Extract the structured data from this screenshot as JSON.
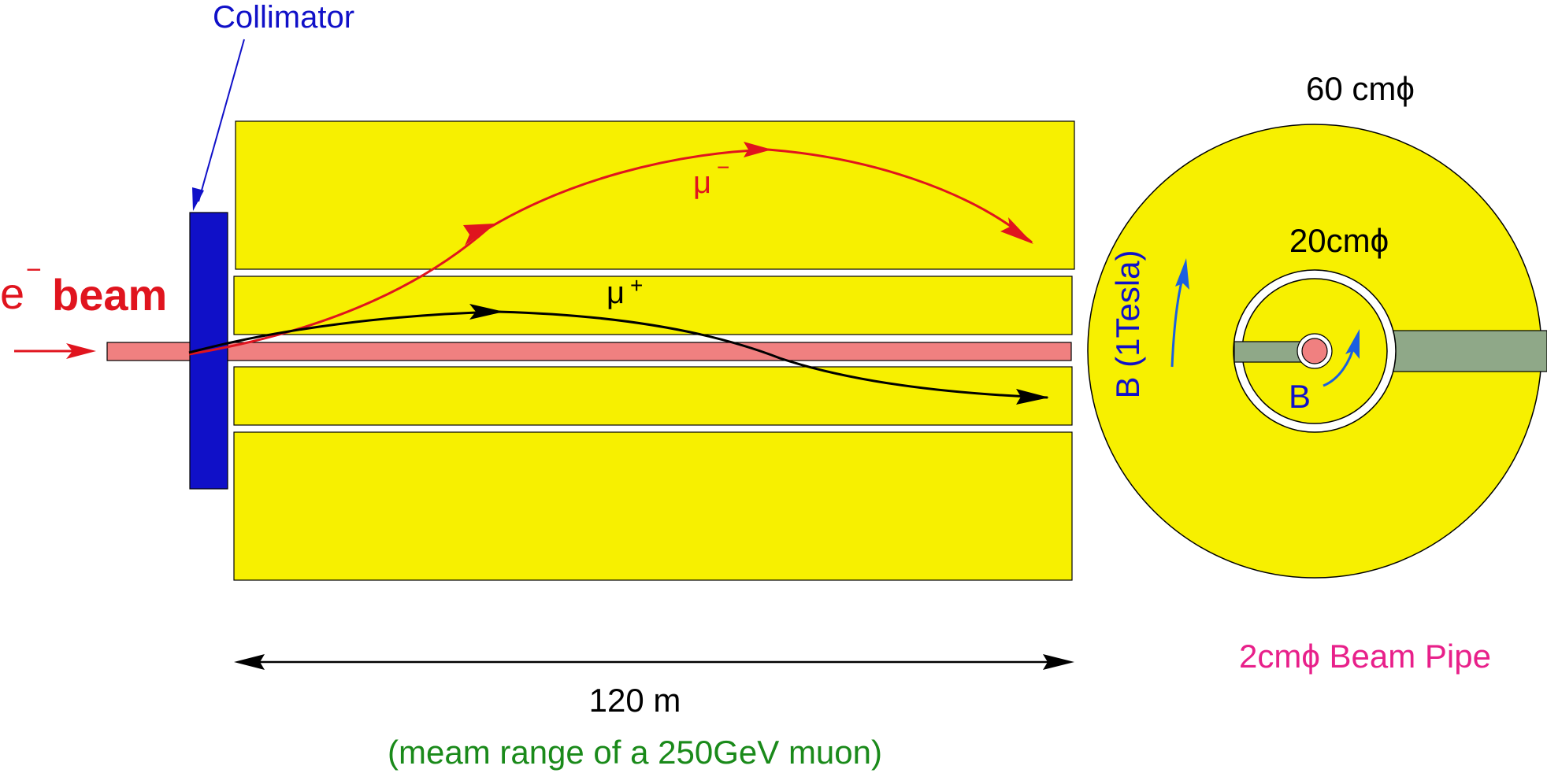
{
  "labels": {
    "collimator": "Collimator",
    "beam_particle": "e",
    "beam_charge": "−",
    "beam_word": "beam",
    "mu_minus_symbol": "μ",
    "mu_minus_charge": "−",
    "mu_plus_symbol": "μ",
    "mu_plus_charge": "+",
    "outer_diameter": "60 cmϕ",
    "inner_diameter": "20cmϕ",
    "field_vertical": "B (1Tesla)",
    "field_inner": "B",
    "beam_pipe": "2cmϕ Beam Pipe",
    "length": "120 m",
    "length_note": "(meam range of a 250GeV muon)"
  },
  "colors": {
    "yellow": "#f7f000",
    "beam_pipe": "#f08080",
    "collimator": "#1010c8",
    "blue_text": "#1010c8",
    "arrow_blue": "#1a5fe0",
    "red": "#e0141e",
    "black": "#000000",
    "green_text": "#1a8a1a",
    "magenta_text": "#e8208a",
    "gray_green": "#8fa888"
  }
}
